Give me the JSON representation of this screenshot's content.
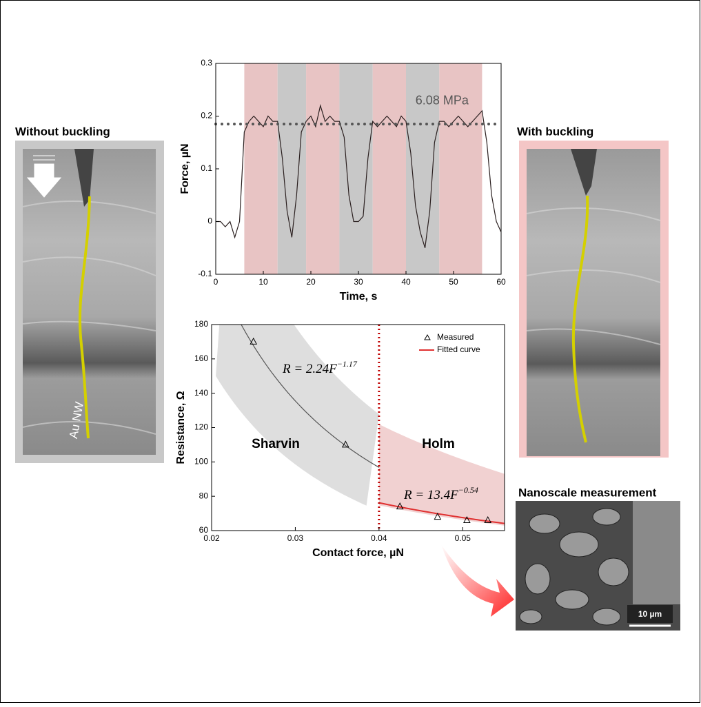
{
  "panels": {
    "left_title": "Without buckling",
    "left_label": "Au NW",
    "right_title": "With buckling",
    "inset_title": "Nanoscale measurement",
    "inset_scale": "10 µm"
  },
  "chart_data": [
    {
      "type": "line",
      "xlabel": "Time, s",
      "ylabel": "Force, µN",
      "xlim": [
        0,
        60
      ],
      "xticks": [
        0,
        10,
        20,
        30,
        40,
        50,
        60
      ],
      "ylim": [
        -0.1,
        0.3
      ],
      "yticks": [
        -0.1,
        0,
        0.1,
        0.2,
        0.3
      ],
      "annotation": "6.08 MPa",
      "threshold": 0.185,
      "threshold_color": "#555555",
      "bands": [
        {
          "start": 6,
          "end": 13,
          "color": "#e8c4c4"
        },
        {
          "start": 13,
          "end": 19,
          "color": "#c8c8c8"
        },
        {
          "start": 19,
          "end": 26,
          "color": "#e8c4c4"
        },
        {
          "start": 26,
          "end": 33,
          "color": "#c8c8c8"
        },
        {
          "start": 33,
          "end": 40,
          "color": "#e8c4c4"
        },
        {
          "start": 40,
          "end": 47,
          "color": "#c8c8c8"
        },
        {
          "start": 47,
          "end": 56,
          "color": "#e8c4c4"
        }
      ],
      "x": [
        0,
        1,
        2,
        3,
        4,
        5,
        6,
        7,
        8,
        9,
        10,
        11,
        12,
        13,
        14,
        15,
        16,
        17,
        18,
        19,
        20,
        21,
        22,
        23,
        24,
        25,
        26,
        27,
        28,
        29,
        30,
        31,
        32,
        33,
        34,
        35,
        36,
        37,
        38,
        39,
        40,
        41,
        42,
        43,
        44,
        45,
        46,
        47,
        48,
        49,
        50,
        51,
        52,
        53,
        54,
        55,
        56,
        57,
        58,
        59,
        60
      ],
      "series": [
        {
          "color": "#2a1f1f",
          "values": [
            0,
            0,
            -0.01,
            0,
            -0.03,
            0,
            0.17,
            0.19,
            0.2,
            0.19,
            0.18,
            0.2,
            0.19,
            0.19,
            0.12,
            0.02,
            -0.03,
            0.05,
            0.17,
            0.19,
            0.2,
            0.18,
            0.22,
            0.19,
            0.2,
            0.19,
            0.19,
            0.16,
            0.05,
            0,
            0,
            0.01,
            0.12,
            0.19,
            0.18,
            0.19,
            0.2,
            0.19,
            0.18,
            0.2,
            0.19,
            0.13,
            0.03,
            -0.02,
            -0.05,
            0.02,
            0.15,
            0.19,
            0.19,
            0.18,
            0.19,
            0.2,
            0.19,
            0.18,
            0.19,
            0.2,
            0.21,
            0.15,
            0.05,
            0,
            -0.02
          ]
        }
      ]
    },
    {
      "type": "scatter",
      "xlabel": "Contact force, µN",
      "ylabel": "Resistance, Ω",
      "xlim": [
        0.02,
        0.055
      ],
      "xticks": [
        0.02,
        0.03,
        0.04,
        0.05
      ],
      "ylim": [
        60,
        180
      ],
      "yticks": [
        60,
        80,
        100,
        120,
        140,
        160,
        180
      ],
      "divider": 0.04,
      "divider_color": "#c00000",
      "regions": [
        "Sharvin",
        "Holm"
      ],
      "series": [
        {
          "name": "Measured",
          "color": "#000000",
          "x": [
            0.025,
            0.036,
            0.0425,
            0.047,
            0.0505,
            0.053
          ],
          "values": [
            170,
            110,
            74,
            68,
            66,
            66
          ]
        }
      ],
      "fit_legend": "Fitted curve",
      "fits": [
        {
          "coefficient": 2.24,
          "exponent": -1.17,
          "domain": [
            0.022,
            0.04
          ],
          "color": "#555555",
          "band": "#d8d8d8",
          "lhs": "R = 2.24F",
          "sup": "−1.17"
        },
        {
          "coefficient": 13.4,
          "exponent": -0.54,
          "domain": [
            0.04,
            0.055
          ],
          "color": "#e03030",
          "band": "#efc9c9",
          "lhs": "R = 13.4F",
          "sup": "−0.54"
        }
      ]
    }
  ]
}
